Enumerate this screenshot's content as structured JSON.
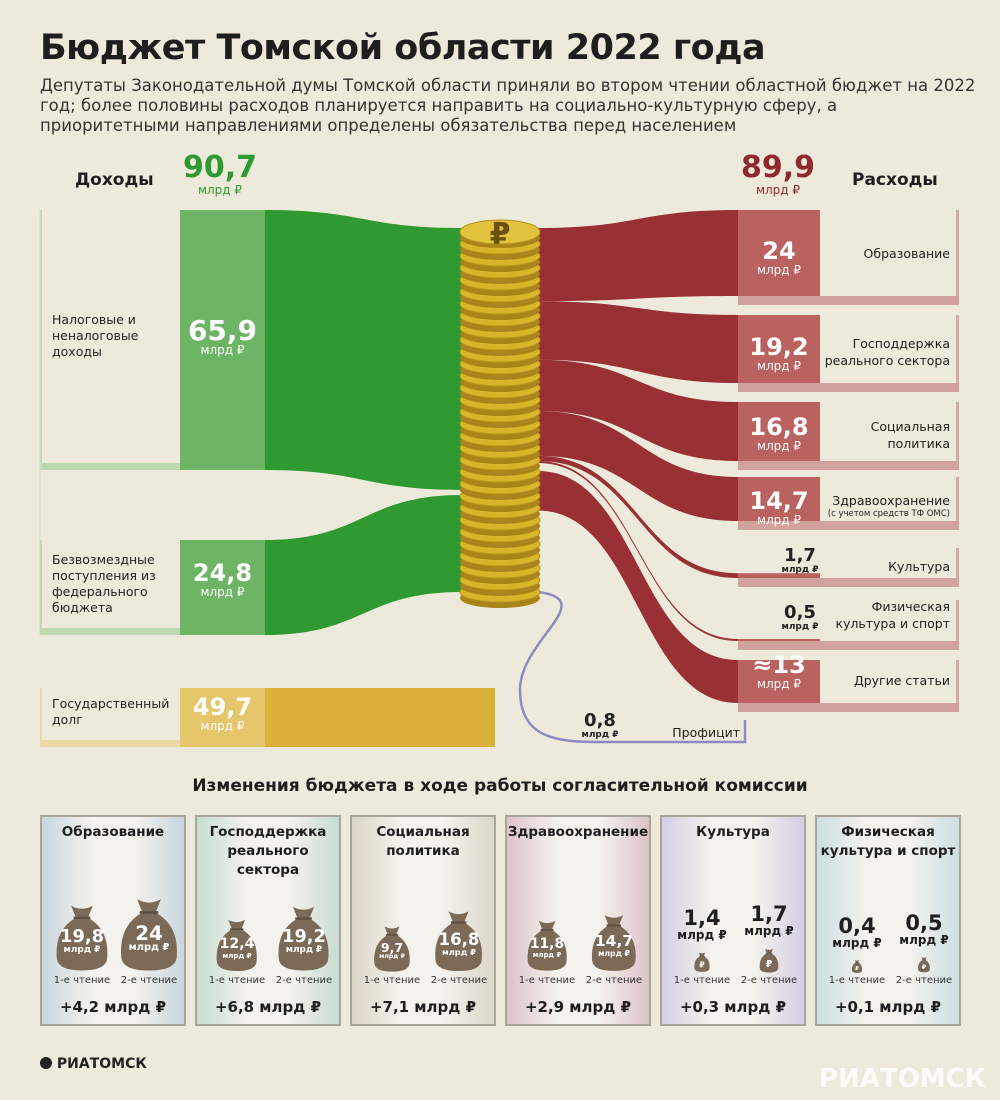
{
  "header": {
    "title": "Бюджет Томской области 2022 года",
    "subtitle": "Депутаты Законодательной думы Томской области приняли во втором чтении областной бюджет на 2022 год; более половины расходов планируется направить на социально-культурную сферу, а приоритетными направлениями определены обязательства перед населением"
  },
  "income": {
    "heading": "Доходы",
    "total": "90,7",
    "unit": "млрд ₽",
    "items": [
      {
        "label": "Налоговые и неналоговые доходы",
        "value": "65,9",
        "unit": "млрд ₽"
      },
      {
        "label": "Безвозмездные поступления из федерального бюджета",
        "value": "24,8",
        "unit": "млрд ₽"
      },
      {
        "label": "Государственный долг",
        "value": "49,7",
        "unit": "млрд ₽"
      }
    ]
  },
  "expenses": {
    "heading": "Расходы",
    "total": "89,9",
    "unit": "млрд ₽",
    "items": [
      {
        "label": "Образование",
        "value": "24",
        "unit": "млрд ₽",
        "note": ""
      },
      {
        "label": "Господдержка реального сектора",
        "value": "19,2",
        "unit": "млрд ₽",
        "note": ""
      },
      {
        "label": "Социальная политика",
        "value": "16,8",
        "unit": "млрд ₽",
        "note": ""
      },
      {
        "label": "Здравоохранение",
        "value": "14,7",
        "unit": "млрд ₽",
        "note": "(с учетом средств ТФ ОМС)"
      },
      {
        "label": "Культура",
        "value": "1,7",
        "unit": "млрд ₽",
        "note": ""
      },
      {
        "label": "Физическая культура и спорт",
        "value": "0,5",
        "unit": "млрд ₽",
        "note": ""
      },
      {
        "label": "Другие статьи",
        "value": "≈13",
        "unit": "млрд ₽",
        "note": ""
      }
    ],
    "surplus": {
      "label": "Профицит",
      "value": "0,8",
      "unit": "млрд ₽"
    }
  },
  "changes": {
    "title": "Изменения бюджета в ходе работы согласительной комиссии",
    "reading1": "1-е чтение",
    "reading2": "2-е чтение",
    "cards": [
      {
        "title": "Образование",
        "r1": "19,8",
        "r2": "24",
        "delta": "+4,2 млрд ₽",
        "bg": "#c9d6df"
      },
      {
        "title": "Господдержка реального сектора",
        "r1": "12,4",
        "r2": "19,2",
        "delta": "+6,8 млрд ₽",
        "bg": "#c7ddd0"
      },
      {
        "title": "Социальная политика",
        "r1": "9,7",
        "r2": "16,8",
        "delta": "+7,1 млрд ₽",
        "bg": "#dcd6c8"
      },
      {
        "title": "Здравоохранение",
        "r1": "11,8",
        "r2": "14,7",
        "delta": "+2,9 млрд ₽",
        "bg": "#dcc3c9"
      },
      {
        "title": "Культура",
        "r1": "1,4",
        "r2": "1,7",
        "delta": "+0,3 млрд ₽",
        "bg": "#d4cfe4"
      },
      {
        "title": "Физическая культура и спорт",
        "r1": "0,4",
        "r2": "0,5",
        "delta": "+0,1 млрд ₽",
        "bg": "#cddfe2"
      }
    ],
    "unit": "млрд ₽"
  },
  "logo": {
    "text": "РИАТОМСК"
  },
  "colors": {
    "green": "#2f9a31",
    "green_light": "#6db565",
    "red": "#993134",
    "red_light": "#b9625f",
    "gold": "#dbb13a",
    "coin": "#d9b52a"
  },
  "chart_data": {
    "type": "sankey",
    "title": "Бюджет Томской области 2022 года",
    "sources": [
      {
        "name": "Налоговые и неналоговые доходы",
        "value": 65.9
      },
      {
        "name": "Безвозмездные поступления из федерального бюджета",
        "value": 24.8
      },
      {
        "name": "Государственный долг",
        "value": 49.7
      }
    ],
    "targets": [
      {
        "name": "Образование",
        "value": 24
      },
      {
        "name": "Господдержка реального сектора",
        "value": 19.2
      },
      {
        "name": "Социальная политика",
        "value": 16.8
      },
      {
        "name": "Здравоохранение",
        "value": 14.7
      },
      {
        "name": "Культура",
        "value": 1.7
      },
      {
        "name": "Физическая культура и спорт",
        "value": 0.5
      },
      {
        "name": "Другие статьи",
        "value": 13
      },
      {
        "name": "Профицит",
        "value": 0.8
      }
    ],
    "income_total": 90.7,
    "expense_total": 89.9,
    "changes": [
      {
        "name": "Образование",
        "reading1": 19.8,
        "reading2": 24
      },
      {
        "name": "Господдержка реального сектора",
        "reading1": 12.4,
        "reading2": 19.2
      },
      {
        "name": "Социальная политика",
        "reading1": 9.7,
        "reading2": 16.8
      },
      {
        "name": "Здравоохранение",
        "reading1": 11.8,
        "reading2": 14.7
      },
      {
        "name": "Культура",
        "reading1": 1.4,
        "reading2": 1.7
      },
      {
        "name": "Физическая культура и спорт",
        "reading1": 0.4,
        "reading2": 0.5
      }
    ]
  }
}
